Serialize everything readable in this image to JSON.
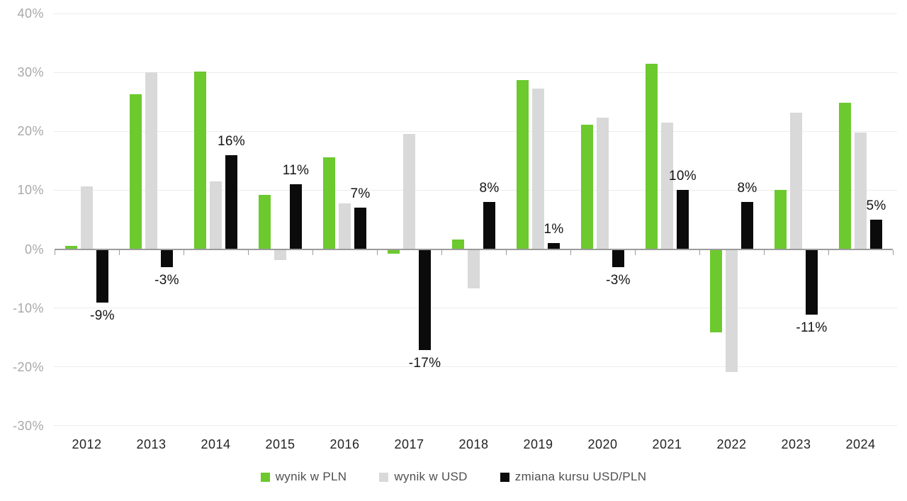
{
  "chart_data": {
    "type": "bar",
    "title": "",
    "xlabel": "",
    "ylabel": "",
    "categories": [
      "2012",
      "2013",
      "2014",
      "2015",
      "2016",
      "2017",
      "2018",
      "2019",
      "2020",
      "2021",
      "2022",
      "2023",
      "2024"
    ],
    "series": [
      {
        "name": "wynik w PLN",
        "color": "#6cc92e",
        "values": [
          0.5,
          26.3,
          30.2,
          9.2,
          15.6,
          -0.7,
          1.6,
          28.7,
          21.1,
          31.5,
          -14.0,
          10.0,
          24.9
        ]
      },
      {
        "name": "wynik w USD",
        "color": "#d9d9d9",
        "values": [
          10.6,
          30.0,
          11.5,
          -1.8,
          7.8,
          19.5,
          -6.5,
          27.3,
          22.3,
          21.5,
          -20.8,
          23.2,
          19.8
        ]
      },
      {
        "name": "zmiana kursu USD/PLN",
        "color": "#0b0b0b",
        "values": [
          -9,
          -3,
          16,
          11,
          7,
          -17,
          8,
          1,
          -3,
          10,
          8,
          -11,
          5
        ],
        "data_labels": [
          "-9%",
          "-3%",
          "16%",
          "11%",
          "7%",
          "-17%",
          "8%",
          "1%",
          "-3%",
          "10%",
          "8%",
          "-11%",
          "5%"
        ]
      }
    ],
    "ylim": [
      -30,
      40
    ],
    "y_tick_values": [
      40,
      30,
      20,
      10,
      0,
      -10,
      -20,
      -30
    ],
    "y_tick_labels": [
      "40%",
      "30%",
      "20%",
      "10%",
      "0%",
      "-10%",
      "-20%",
      "-30%"
    ],
    "grid": true,
    "legend_position": "bottom",
    "colors": {
      "gridline": "#ececec",
      "zero_axis": "#9b9b9b",
      "y_tick_text": "#a8a8a8",
      "x_tick_text": "#232323",
      "data_label_text": "#141414"
    }
  }
}
